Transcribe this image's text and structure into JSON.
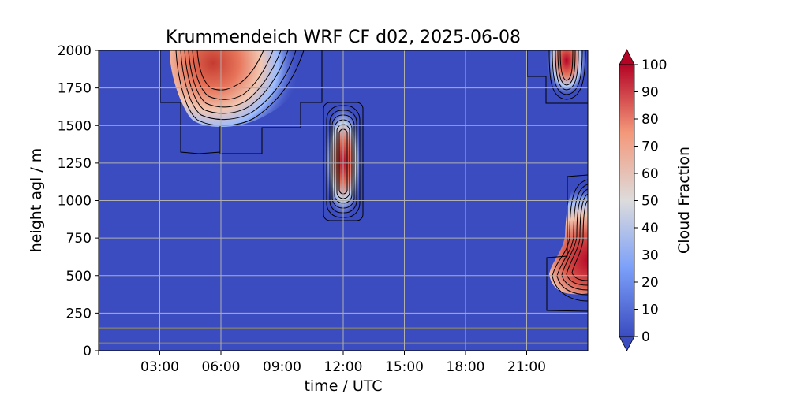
{
  "chart_data": {
    "type": "heatmap",
    "title": "Krummendeich WRF CF d02, 2025-06-08",
    "xlabel": "time / UTC",
    "ylabel": "height agl / m",
    "x_ticks": [
      "03:00",
      "06:00",
      "09:00",
      "12:00",
      "15:00",
      "18:00",
      "21:00"
    ],
    "x_tick_hours": [
      3,
      6,
      9,
      12,
      15,
      18,
      21
    ],
    "xlim_hours": [
      0,
      24
    ],
    "y_ticks": [
      "0",
      "250",
      "500",
      "750",
      "1000",
      "1250",
      "1500",
      "1750",
      "2000"
    ],
    "ylim": [
      0,
      2000
    ],
    "grid": true,
    "background_value": 0,
    "colormap": "coolwarm",
    "colorbar": {
      "label": "Cloud Fraction",
      "range": [
        0,
        100
      ],
      "ticks": [
        "0",
        "10",
        "20",
        "30",
        "40",
        "50",
        "60",
        "70",
        "80",
        "90",
        "100"
      ],
      "extend": "both"
    },
    "horizontal_lines_m": [
      50,
      150
    ],
    "cloud_regions": [
      {
        "name": "morning-upper-cloud",
        "t_start_h": 3.0,
        "t_end_h": 11.0,
        "z_bottom_m": 1320,
        "z_top_m": 2000,
        "peak_t_h": 5.5,
        "peak_z_m": 1900,
        "peak_cf": 90
      },
      {
        "name": "midday-cloud",
        "t_start_h": 11.0,
        "t_end_h": 13.0,
        "z_bottom_m": 880,
        "z_top_m": 1640,
        "peak_t_h": 12.0,
        "peak_z_m": 1270,
        "peak_cf": 90
      },
      {
        "name": "late-upper-cloud",
        "t_start_h": 21.0,
        "t_end_h": 24.0,
        "z_bottom_m": 1650,
        "z_top_m": 2000,
        "peak_t_h": 23.0,
        "peak_z_m": 1850,
        "peak_cf": 90
      },
      {
        "name": "late-low-cloud",
        "t_start_h": 22.0,
        "t_end_h": 24.0,
        "z_bottom_m": 260,
        "z_top_m": 1170,
        "peak_t_h": 24.0,
        "peak_z_m": 650,
        "peak_cf": 95
      }
    ]
  }
}
